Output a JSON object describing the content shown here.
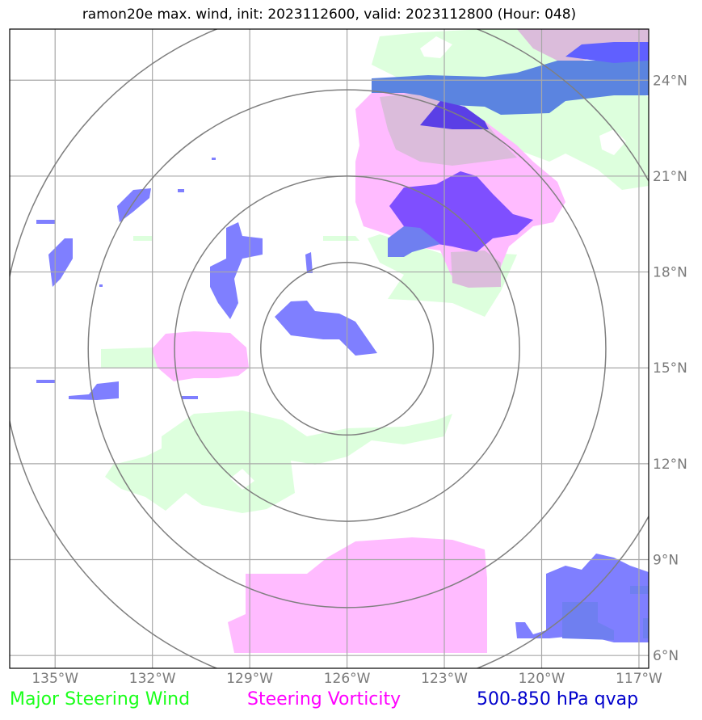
{
  "title": "ramon20e max. wind, init: 2023112600, valid: 2023112800 (Hour: 048)",
  "legend": {
    "wind": {
      "label": "Major Steering Wind",
      "color": "#1aff1a"
    },
    "vorticity": {
      "label": "Steering Vorticity",
      "color": "#ff00ff"
    },
    "qvap": {
      "label": "500-850 hPa qvap",
      "color": "#0000cc"
    }
  },
  "axes": {
    "lon_ticks": [
      "135°W",
      "132°W",
      "129°W",
      "126°W",
      "123°W",
      "120°W",
      "117°W"
    ],
    "lat_ticks": [
      "24°N",
      "21°N",
      "18°N",
      "15°N",
      "12°N",
      "9°N",
      "6°N"
    ],
    "lon_range": [
      -136.4,
      -116.7
    ],
    "lat_range": [
      5.6,
      25.6
    ],
    "tick_color": "#7a7a7a",
    "grid": true
  },
  "storm_center": {
    "lat": 15.6,
    "lon": -126.0
  },
  "range_rings": 4,
  "colors": {
    "wind_fill": "#ddffdd",
    "vorticity_fill": "#ffbbff",
    "qvap_fill": "#7f7fff",
    "qvap_dark": "#6060ff",
    "overlap_fill": "#dbbcdb",
    "overlap_blue": "#5b84e0",
    "grid": "#a8a8a8",
    "ring": "#7f7f7f"
  }
}
